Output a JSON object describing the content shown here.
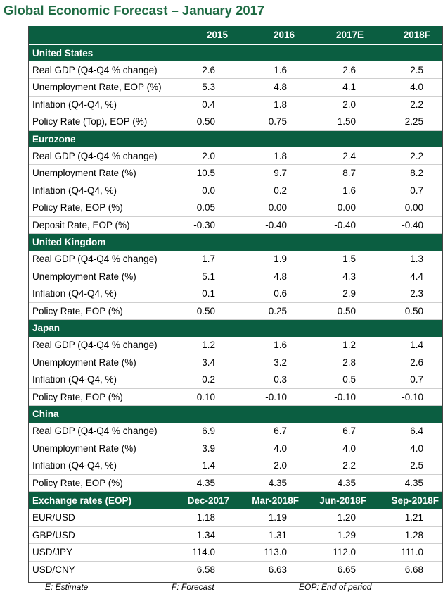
{
  "title": "Global Economic Forecast – January 2017",
  "header": [
    "",
    "2015",
    "2016",
    "2017E",
    "2018F"
  ],
  "sections": [
    {
      "name": "United States",
      "rows": [
        {
          "label": "Real GDP (Q4-Q4 % change)",
          "values": [
            "2.6",
            "1.6",
            "2.6",
            "2.5"
          ]
        },
        {
          "label": "Unemployment Rate, EOP (%)",
          "values": [
            "5.3",
            "4.8",
            "4.1",
            "4.0"
          ]
        },
        {
          "label": "Inflation (Q4-Q4, %)",
          "values": [
            "0.4",
            "1.8",
            "2.0",
            "2.2"
          ]
        },
        {
          "label": "Policy Rate (Top), EOP (%)",
          "values": [
            "0.50",
            "0.75",
            "1.50",
            "2.25"
          ]
        }
      ]
    },
    {
      "name": "Eurozone",
      "rows": [
        {
          "label": "Real GDP (Q4-Q4 % change)",
          "values": [
            "2.0",
            "1.8",
            "2.4",
            "2.2"
          ]
        },
        {
          "label": "Unemployment Rate (%)",
          "values": [
            "10.5",
            "9.7",
            "8.7",
            "8.2"
          ]
        },
        {
          "label": "Inflation (Q4-Q4, %)",
          "values": [
            "0.0",
            "0.2",
            "1.6",
            "0.7"
          ]
        },
        {
          "label": "Policy Rate, EOP (%)",
          "values": [
            "0.05",
            "0.00",
            "0.00",
            "0.00"
          ]
        },
        {
          "label": "Deposit Rate, EOP (%)",
          "values": [
            "-0.30",
            "-0.40",
            "-0.40",
            "-0.40"
          ]
        }
      ]
    },
    {
      "name": "United Kingdom",
      "rows": [
        {
          "label": "Real GDP (Q4-Q4 % change)",
          "values": [
            "1.7",
            "1.9",
            "1.5",
            "1.3"
          ]
        },
        {
          "label": "Unemployment Rate (%)",
          "values": [
            "5.1",
            "4.8",
            "4.3",
            "4.4"
          ]
        },
        {
          "label": "Inflation (Q4-Q4, %)",
          "values": [
            "0.1",
            "0.6",
            "2.9",
            "2.3"
          ]
        },
        {
          "label": "Policy Rate, EOP (%)",
          "values": [
            "0.50",
            "0.25",
            "0.50",
            "0.50"
          ]
        }
      ]
    },
    {
      "name": "Japan",
      "rows": [
        {
          "label": "Real GDP (Q4-Q4 % change)",
          "values": [
            "1.2",
            "1.6",
            "1.2",
            "1.4"
          ]
        },
        {
          "label": "Unemployment Rate (%)",
          "values": [
            "3.4",
            "3.2",
            "2.8",
            "2.6"
          ]
        },
        {
          "label": "Inflation (Q4-Q4, %)",
          "values": [
            "0.2",
            "0.3",
            "0.5",
            "0.7"
          ]
        },
        {
          "label": "Policy Rate, EOP (%)",
          "values": [
            "0.10",
            "-0.10",
            "-0.10",
            "-0.10"
          ]
        }
      ]
    },
    {
      "name": "China",
      "rows": [
        {
          "label": "Real GDP (Q4-Q4 % change)",
          "values": [
            "6.9",
            "6.7",
            "6.7",
            "6.4"
          ]
        },
        {
          "label": "Unemployment Rate (%)",
          "values": [
            "3.9",
            "4.0",
            "4.0",
            "4.0"
          ]
        },
        {
          "label": "Inflation (Q4-Q4, %)",
          "values": [
            "1.4",
            "2.0",
            "2.2",
            "2.5"
          ]
        },
        {
          "label": "Policy Rate, EOP (%)",
          "values": [
            "4.35",
            "4.35",
            "4.35",
            "4.35"
          ]
        }
      ]
    }
  ],
  "exchange": {
    "header": [
      "Exchange rates (EOP)",
      "Dec-2017",
      "Mar-2018F",
      "Jun-2018F",
      "Sep-2018F"
    ],
    "rows": [
      {
        "label": "EUR/USD",
        "values": [
          "1.18",
          "1.19",
          "1.20",
          "1.21"
        ]
      },
      {
        "label": "GBP/USD",
        "values": [
          "1.34",
          "1.31",
          "1.29",
          "1.28"
        ]
      },
      {
        "label": "USD/JPY",
        "values": [
          "114.0",
          "113.0",
          "112.0",
          "111.0"
        ]
      },
      {
        "label": "USD/CNY",
        "values": [
          "6.58",
          "6.63",
          "6.65",
          "6.68"
        ]
      }
    ]
  },
  "footnotes": [
    "E: Estimate",
    "F: Forecast",
    "EOP: End of period"
  ],
  "colors": {
    "title": "#1e6b43",
    "header_fill": "#0b5e41",
    "header_text": "#ffffff"
  }
}
